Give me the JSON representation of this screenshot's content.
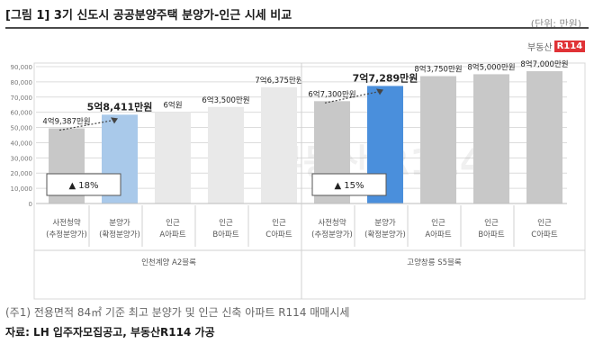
{
  "header": {
    "title": "[그림 1] 3기 신도시 공공분양주택 분양가-인근 시세 비교",
    "unit": "(단위: 만원)"
  },
  "logo": {
    "text": "부동산",
    "mark": "R114"
  },
  "watermark": "부동산 R114",
  "footer": {
    "note": "(주1) 전용면적 84㎡ 기준 최고 분양가 및 인근 신축 아파트 R114 매매시세",
    "source": "자료: LH 입주자모집공고, 부동산R114 가공"
  },
  "chart_data": {
    "type": "bar",
    "ylim": [
      0,
      90000
    ],
    "yticks": [
      "0",
      "10,000",
      "20,000",
      "30,000",
      "40,000",
      "50,000",
      "60,000",
      "70,000",
      "80,000",
      "90,000"
    ],
    "grid": true,
    "categories": [
      "사전청약\n(추정분양가)",
      "분양가\n(확정분양가)",
      "인근\nA아파트",
      "인근\nB아파트",
      "인근\nC아파트",
      "사전청약\n(추정분양가)",
      "분양가\n(확정분양가)",
      "인근\nA아파트",
      "인근\nB아파트",
      "인근\nC아파트"
    ],
    "values": [
      49387,
      58411,
      60000,
      63500,
      76375,
      67300,
      77289,
      83750,
      85000,
      87000
    ],
    "labels": [
      "4억9,387만원",
      "5억8,411만원",
      "6억원",
      "6억3,500만원",
      "7억6,375만원",
      "6억7,300만원",
      "7억7,289만원",
      "8억3,750만원",
      "8억5,000만원",
      "8억7,000만원"
    ],
    "colors": [
      "#c8c8c8",
      "#a9c9ea",
      "#e9e9e9",
      "#e9e9e9",
      "#e9e9e9",
      "#c8c8c8",
      "#4a8fdc",
      "#c8c8c8",
      "#c8c8c8",
      "#c8c8c8"
    ],
    "highlight": [
      1,
      6
    ],
    "groups": [
      {
        "label": "인천계양 A2블록",
        "range": [
          0,
          4
        ]
      },
      {
        "label": "고양창릉 S5블록",
        "range": [
          5,
          9
        ]
      }
    ],
    "increases": [
      {
        "text": "▲ 18%",
        "from": 0,
        "to": 1
      },
      {
        "text": "▲ 15%",
        "from": 5,
        "to": 6
      }
    ]
  }
}
